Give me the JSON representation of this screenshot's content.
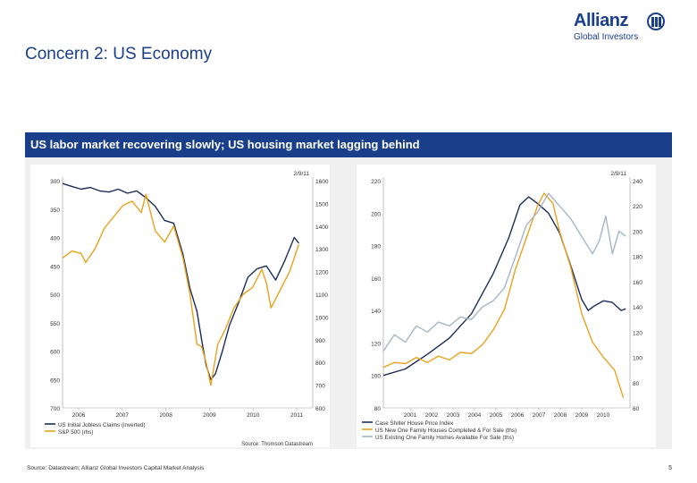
{
  "slide": {
    "title": "Concern 2: US Economy",
    "banner": "US labor market recovering slowly; US housing market lagging behind",
    "footer_source": "Source: Datastream; Allianz Global Investors Capital Market Analysis",
    "page_number": "5"
  },
  "logo": {
    "name": "Allianz",
    "sub": "Global Investors"
  },
  "colors": {
    "brand": "#1a3f8a",
    "orange": "#e8a21c",
    "gray_blue": "#a7b4c4",
    "navy": "#1c2b5a"
  },
  "chart_data": [
    {
      "type": "line",
      "date_label": "2/9/11",
      "left_axis_ticks": [
        "300",
        "350",
        "400",
        "450",
        "500",
        "550",
        "600",
        "650",
        "700"
      ],
      "right_axis_ticks": [
        "1600",
        "1500",
        "1400",
        "1300",
        "1200",
        "1100",
        "1000",
        "900",
        "800",
        "700",
        "600"
      ],
      "x_ticks": [
        "2006",
        "2007",
        "2008",
        "2009",
        "2010",
        "2011"
      ],
      "source_note": "Source: Thomson Datastream",
      "legend": [
        "US Initial Jobless Claims (inverted)",
        "S&P 500 (rhs)"
      ],
      "x_range": [
        2006.0,
        2011.4
      ],
      "left_range": [
        300,
        700
      ],
      "right_range": [
        600,
        1600
      ],
      "series": [
        {
          "name": "US Initial Jobless Claims (inverted)",
          "axis": "left",
          "inverted": true,
          "color": "#1c2b5a",
          "x": [
            2006.0,
            2006.2,
            2006.4,
            2006.6,
            2006.8,
            2007.0,
            2007.2,
            2007.4,
            2007.6,
            2007.8,
            2008.0,
            2008.2,
            2008.4,
            2008.6,
            2008.75,
            2008.9,
            2009.0,
            2009.1,
            2009.2,
            2009.3,
            2009.45,
            2009.6,
            2009.8,
            2010.0,
            2010.2,
            2010.4,
            2010.6,
            2010.8,
            2011.0,
            2011.1
          ],
          "values": [
            305,
            310,
            315,
            312,
            318,
            320,
            315,
            322,
            318,
            330,
            345,
            370,
            375,
            430,
            490,
            530,
            580,
            625,
            650,
            640,
            600,
            555,
            515,
            470,
            455,
            450,
            475,
            440,
            400,
            410
          ]
        },
        {
          "name": "S&P 500 (rhs)",
          "axis": "right",
          "color": "#e8a21c",
          "x": [
            2006.0,
            2006.2,
            2006.4,
            2006.5,
            2006.7,
            2006.9,
            2007.1,
            2007.3,
            2007.5,
            2007.7,
            2007.8,
            2008.0,
            2008.2,
            2008.4,
            2008.6,
            2008.75,
            2008.9,
            2009.0,
            2009.1,
            2009.2,
            2009.35,
            2009.5,
            2009.7,
            2009.9,
            2010.1,
            2010.3,
            2010.4,
            2010.5,
            2010.7,
            2010.9,
            2011.1
          ],
          "values": [
            1260,
            1290,
            1280,
            1240,
            1300,
            1390,
            1440,
            1490,
            1510,
            1460,
            1540,
            1380,
            1330,
            1400,
            1260,
            1100,
            880,
            870,
            800,
            700,
            880,
            940,
            1040,
            1100,
            1130,
            1210,
            1150,
            1040,
            1120,
            1200,
            1320
          ]
        }
      ]
    },
    {
      "type": "line",
      "date_label": "2/9/11",
      "left_axis_ticks": [
        "220",
        "200",
        "180",
        "160",
        "140",
        "120",
        "100",
        "80"
      ],
      "right_axis_ticks": [
        "240",
        "220",
        "200",
        "180",
        "160",
        "140",
        "120",
        "100",
        "80",
        "60"
      ],
      "x_ticks": [
        "2001",
        "2002",
        "2003",
        "2004",
        "2005",
        "2006",
        "2007",
        "2008",
        "2009",
        "2010"
      ],
      "legend": [
        "Case Shiller House Price Index",
        "US New One Family Houses Completed & For Sale (ths)",
        "US Existing One Family Homes Available For Sale (ths)"
      ],
      "x_range": [
        2000.0,
        2011.2
      ],
      "left_range": [
        80,
        220
      ],
      "right_range": [
        60,
        240
      ],
      "series": [
        {
          "name": "Case Shiller House Price Index",
          "axis": "left",
          "color": "#1c2b5a",
          "x": [
            2000.0,
            2001.0,
            2002.0,
            2003.0,
            2004.0,
            2005.0,
            2005.7,
            2006.2,
            2006.6,
            2007.0,
            2007.5,
            2008.0,
            2008.5,
            2009.0,
            2009.3,
            2009.6,
            2010.0,
            2010.4,
            2010.8,
            2011.0
          ],
          "values": [
            100,
            104,
            113,
            123,
            138,
            163,
            185,
            205,
            210,
            206,
            200,
            188,
            168,
            147,
            140,
            143,
            146,
            145,
            140,
            141
          ]
        },
        {
          "name": "US New One Family Houses Completed & For Sale (ths)",
          "axis": "right",
          "color": "#e8a21c",
          "x": [
            2000.0,
            2000.5,
            2001.0,
            2001.5,
            2002.0,
            2002.5,
            2003.0,
            2003.5,
            2004.0,
            2004.5,
            2005.0,
            2005.5,
            2006.0,
            2006.5,
            2007.0,
            2007.3,
            2007.7,
            2008.0,
            2008.5,
            2009.0,
            2009.5,
            2010.0,
            2010.5,
            2010.9
          ],
          "values": [
            92,
            96,
            95,
            100,
            96,
            101,
            98,
            104,
            103,
            110,
            122,
            138,
            170,
            195,
            220,
            230,
            222,
            200,
            172,
            135,
            112,
            100,
            90,
            68
          ]
        },
        {
          "name": "US Existing One Family Homes Available For Sale (ths)",
          "axis": "right",
          "color": "#a7b4c4",
          "x": [
            2000.0,
            2000.5,
            2001.0,
            2001.5,
            2002.0,
            2002.5,
            2003.0,
            2003.5,
            2004.0,
            2004.5,
            2005.0,
            2005.5,
            2006.0,
            2006.5,
            2007.0,
            2007.5,
            2008.0,
            2008.5,
            2009.0,
            2009.5,
            2009.8,
            2010.1,
            2010.4,
            2010.7,
            2011.0
          ],
          "values": [
            105,
            118,
            112,
            125,
            120,
            128,
            125,
            132,
            130,
            140,
            145,
            155,
            180,
            205,
            215,
            230,
            220,
            210,
            196,
            182,
            192,
            212,
            182,
            200,
            196
          ]
        }
      ]
    }
  ]
}
